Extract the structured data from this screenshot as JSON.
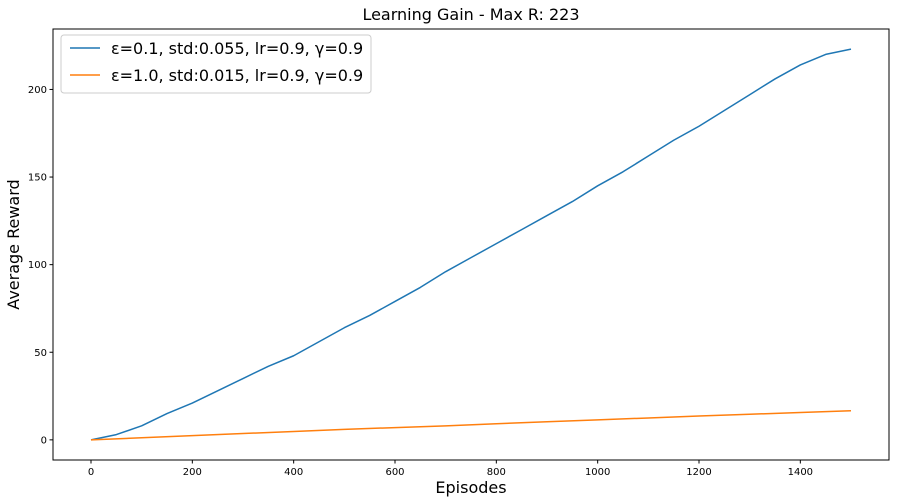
{
  "chart_data": {
    "type": "line",
    "title": "Learning Gain - Max R: 223",
    "xlabel": "Episodes",
    "ylabel": "Average Reward",
    "xlim": [
      -75,
      1575
    ],
    "ylim": [
      -11.5,
      234.5
    ],
    "xticks": [
      0,
      200,
      400,
      600,
      800,
      1000,
      1200,
      1400
    ],
    "xtick_labels": [
      "0",
      "200",
      "400",
      "600",
      "800",
      "1000",
      "1200",
      "1400"
    ],
    "yticks": [
      0,
      50,
      100,
      150,
      200
    ],
    "ytick_labels": [
      "0",
      "50",
      "100",
      "150",
      "200"
    ],
    "grid": false,
    "legend_position": "top-left",
    "series": [
      {
        "name": "ε=0.1, std:0.055, lr=0.9, γ=0.9",
        "color": "#1f77b4",
        "x": [
          0,
          50,
          100,
          150,
          200,
          250,
          300,
          350,
          400,
          450,
          500,
          550,
          600,
          650,
          700,
          750,
          800,
          850,
          900,
          950,
          1000,
          1050,
          1100,
          1150,
          1200,
          1250,
          1300,
          1350,
          1400,
          1450,
          1500
        ],
        "y": [
          0,
          3,
          8,
          15,
          21,
          28,
          35,
          42,
          48,
          56,
          64,
          71,
          79,
          87,
          96,
          104,
          112,
          120,
          128,
          136,
          145,
          153,
          162,
          171,
          179,
          188,
          197,
          206,
          214,
          220,
          223
        ]
      },
      {
        "name": "ε=1.0, std:0.015, lr=0.9, γ=0.9",
        "color": "#ff7f0e",
        "x": [
          0,
          100,
          200,
          300,
          400,
          500,
          600,
          700,
          800,
          900,
          1000,
          1100,
          1200,
          1300,
          1400,
          1500
        ],
        "y": [
          0,
          1.2,
          2.4,
          3.6,
          4.8,
          6.0,
          7.0,
          8.0,
          9.2,
          10.3,
          11.4,
          12.5,
          13.6,
          14.6,
          15.6,
          16.6
        ]
      }
    ]
  }
}
